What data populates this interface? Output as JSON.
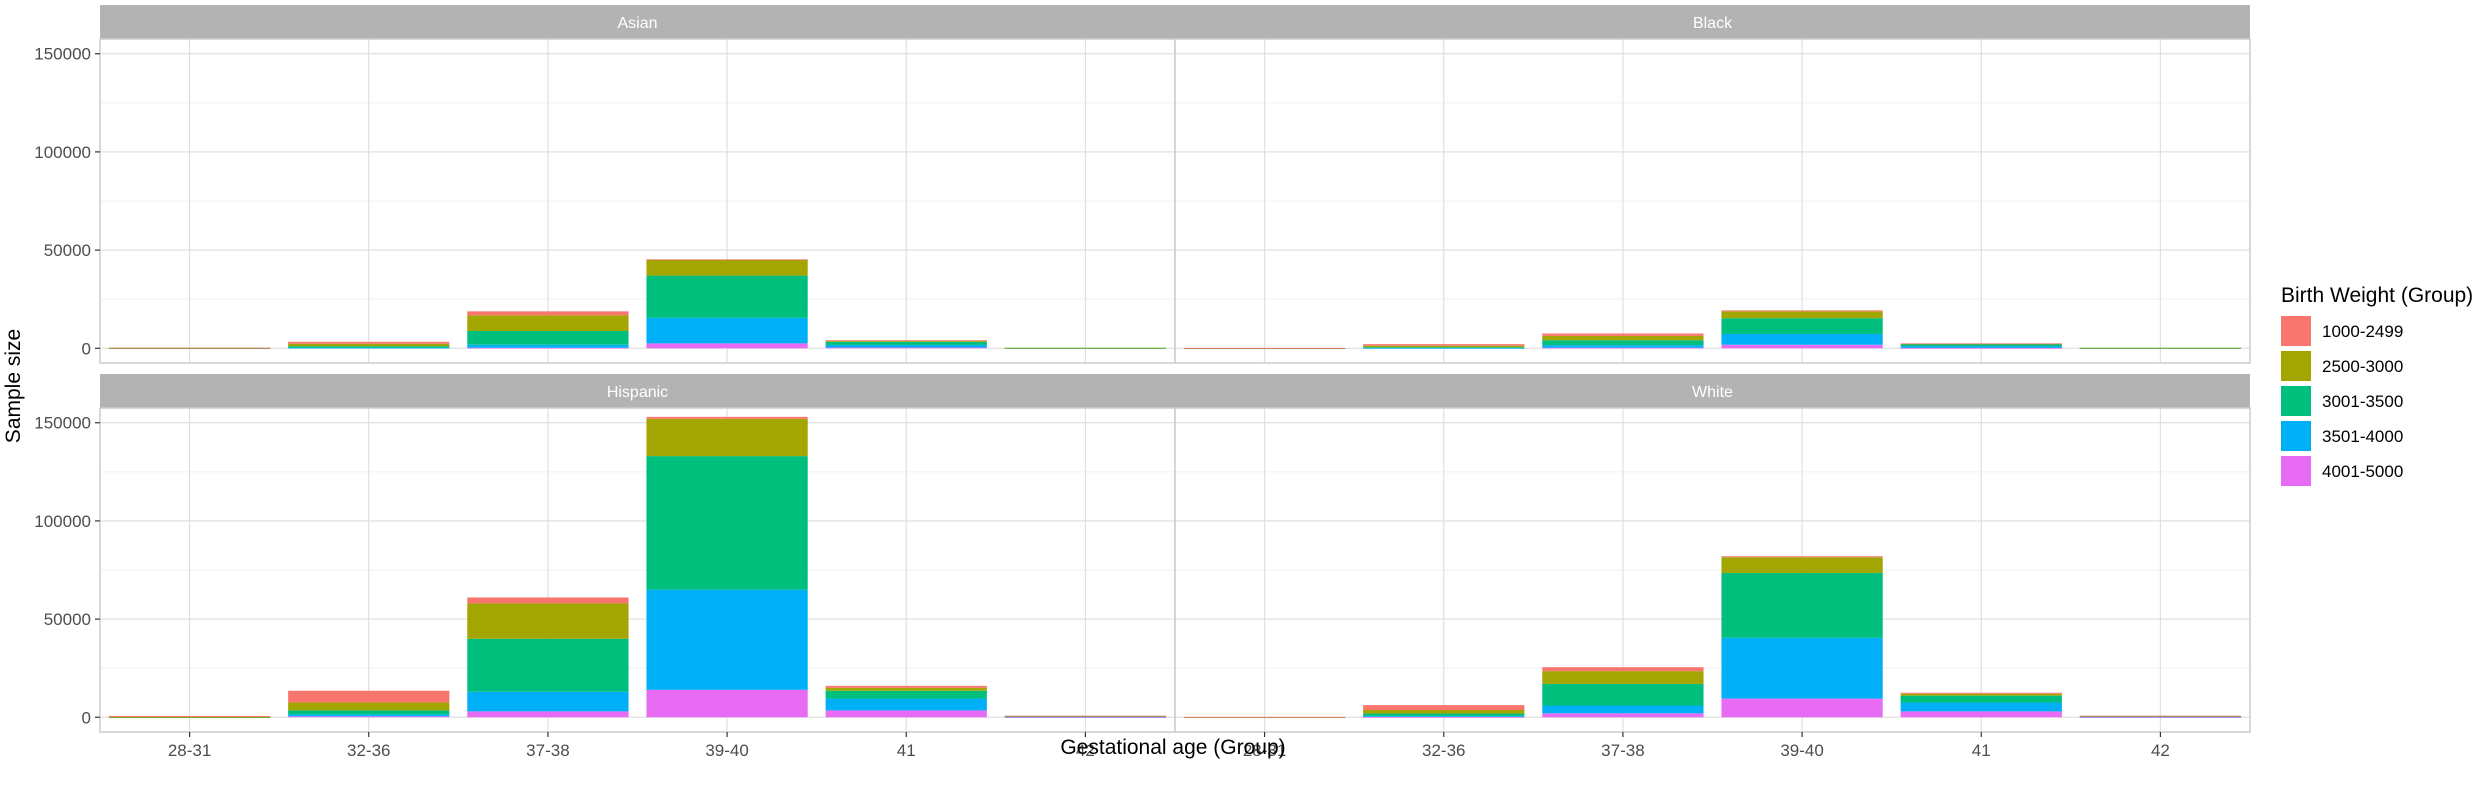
{
  "chart_data": {
    "type": "bar",
    "stacked": true,
    "faceted": true,
    "facet_layout": "2x2",
    "xlabel": "Gestational age (Group)",
    "ylabel": "Sample size",
    "categories": [
      "28-31",
      "32-36",
      "37-38",
      "39-40",
      "41",
      "42"
    ],
    "ylim": [
      -7500,
      157500
    ],
    "yticks": [
      0,
      50000,
      100000,
      150000
    ],
    "ytick_labels": [
      "0",
      "50000",
      "100000",
      "150000"
    ],
    "grid": true,
    "legend": {
      "title": "Birth Weight (Group)",
      "position": "right",
      "entries": [
        "1000-2499",
        "2500-3000",
        "3001-3500",
        "3501-4000",
        "4001-5000"
      ]
    },
    "colors": {
      "1000-2499": "#F8766D",
      "2500-3000": "#A3A500",
      "3001-3500": "#00BF7D",
      "3501-4000": "#00B0F6",
      "4001-5000": "#E76BF3",
      "strip_background": "#b3b3b3",
      "panel_border": "#cccccc",
      "grid_major": "#e0e0e0",
      "grid_minor": "#f0f0f0"
    },
    "panels": [
      {
        "title": "Asian",
        "series": [
          {
            "name": "1000-2499",
            "values": [
              150,
              1000,
              2000,
              300,
              300,
              0
            ]
          },
          {
            "name": "2500-3000",
            "values": [
              100,
              1200,
              8000,
              8000,
              500,
              50
            ]
          },
          {
            "name": "3001-3500",
            "values": [
              50,
              800,
              7000,
              21500,
              1600,
              100
            ]
          },
          {
            "name": "3501-4000",
            "values": [
              20,
              300,
              1500,
              13000,
              1300,
              100
            ]
          },
          {
            "name": "4001-5000",
            "values": [
              0,
              0,
              300,
              2500,
              400,
              0
            ]
          }
        ]
      },
      {
        "title": "Black",
        "series": [
          {
            "name": "1000-2499",
            "values": [
              100,
              800,
              1200,
              500,
              100,
              0
            ]
          },
          {
            "name": "2500-3000",
            "values": [
              50,
              700,
              2200,
              3500,
              300,
              50
            ]
          },
          {
            "name": "3001-3500",
            "values": [
              30,
              400,
              2500,
              8000,
              1000,
              100
            ]
          },
          {
            "name": "3501-4000",
            "values": [
              10,
              200,
              1300,
              5500,
              900,
              100
            ]
          },
          {
            "name": "4001-5000",
            "values": [
              0,
              0,
              300,
              1800,
              200,
              0
            ]
          }
        ]
      },
      {
        "title": "Hispanic",
        "series": [
          {
            "name": "1000-2499",
            "values": [
              500,
              6000,
              3000,
              1000,
              1000,
              100
            ]
          },
          {
            "name": "2500-3000",
            "values": [
              100,
              4000,
              18000,
              19000,
              1500,
              100
            ]
          },
          {
            "name": "3001-3500",
            "values": [
              50,
              2000,
              27000,
              68000,
              4000,
              200
            ]
          },
          {
            "name": "3501-4000",
            "values": [
              20,
              1000,
              10000,
              51000,
              6000,
              300
            ]
          },
          {
            "name": "4001-5000",
            "values": [
              0,
              500,
              3000,
              14000,
              3500,
              100
            ]
          }
        ]
      },
      {
        "title": "White",
        "series": [
          {
            "name": "1000-2499",
            "values": [
              100,
              2500,
              2000,
              500,
              500,
              100
            ]
          },
          {
            "name": "2500-3000",
            "values": [
              50,
              1800,
              6500,
              8000,
              1000,
              100
            ]
          },
          {
            "name": "3001-3500",
            "values": [
              30,
              1200,
              11000,
              33000,
              3500,
              200
            ]
          },
          {
            "name": "3501-4000",
            "values": [
              10,
              500,
              4000,
              31000,
              4500,
              300
            ]
          },
          {
            "name": "4001-5000",
            "values": [
              0,
              200,
              2000,
              9500,
              3000,
              100
            ]
          }
        ]
      }
    ]
  }
}
